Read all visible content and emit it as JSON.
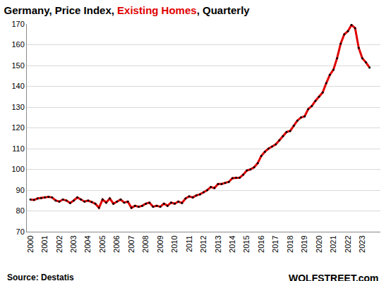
{
  "chart_data": {
    "type": "line",
    "title": "Germany, Price Index, Existing Homes, Quarterly",
    "annotations": [
      "Source: Destatis",
      "WOLFSTREET.com"
    ],
    "categories": [
      "2000",
      null,
      null,
      null,
      "2001",
      null,
      null,
      null,
      "2002",
      null,
      null,
      null,
      "2003",
      null,
      null,
      null,
      "2004",
      null,
      null,
      null,
      "2005",
      null,
      null,
      null,
      "2006",
      null,
      null,
      null,
      "2007",
      null,
      null,
      null,
      "2008",
      null,
      null,
      null,
      "2009",
      null,
      null,
      null,
      "2010",
      null,
      null,
      null,
      "2011",
      null,
      null,
      null,
      "2012",
      null,
      null,
      null,
      "2013",
      null,
      null,
      null,
      "2014",
      null,
      null,
      null,
      "2015",
      null,
      null,
      null,
      "2016",
      null,
      null,
      null,
      "2017",
      null,
      null,
      null,
      "2018",
      null,
      null,
      null,
      "2019",
      null,
      null,
      null,
      "2020",
      null,
      null,
      null,
      "2021",
      null,
      null,
      null,
      "2022",
      null,
      null,
      null,
      "2023",
      null,
      null
    ],
    "values": [
      85.5,
      85.3,
      86.0,
      86.2,
      86.5,
      86.8,
      86.5,
      85.0,
      84.5,
      85.5,
      85.0,
      83.8,
      85.0,
      86.5,
      85.5,
      84.5,
      85.0,
      84.3,
      83.5,
      81.5,
      85.5,
      84.0,
      86.0,
      83.5,
      84.5,
      85.5,
      84.0,
      84.5,
      81.5,
      82.5,
      82.0,
      82.5,
      83.5,
      84.0,
      82.0,
      82.5,
      82.0,
      83.5,
      82.5,
      84.0,
      83.5,
      84.5,
      83.8,
      86.0,
      87.0,
      86.5,
      87.5,
      88.0,
      89.0,
      90.0,
      91.5,
      91.0,
      93.0,
      93.0,
      93.5,
      94.0,
      95.8,
      96.0,
      96.0,
      97.5,
      99.5,
      100.0,
      101.0,
      103.0,
      106.5,
      108.5,
      110.0,
      111.0,
      112.0,
      114.0,
      116.0,
      118.0,
      118.5,
      121.0,
      123.5,
      125.0,
      125.5,
      129.0,
      130.5,
      133.0,
      135.0,
      137.0,
      141.5,
      145.5,
      148.0,
      153.5,
      160.5,
      165.0,
      166.5,
      169.5,
      168.0,
      158.5,
      153.5,
      151.5,
      149.0
    ],
    "color": "#e00000",
    "marker": "circle",
    "ylim": [
      70,
      170
    ],
    "yticks": [
      70,
      80,
      90,
      100,
      110,
      120,
      130,
      140,
      150,
      160,
      170
    ],
    "grid": true
  }
}
